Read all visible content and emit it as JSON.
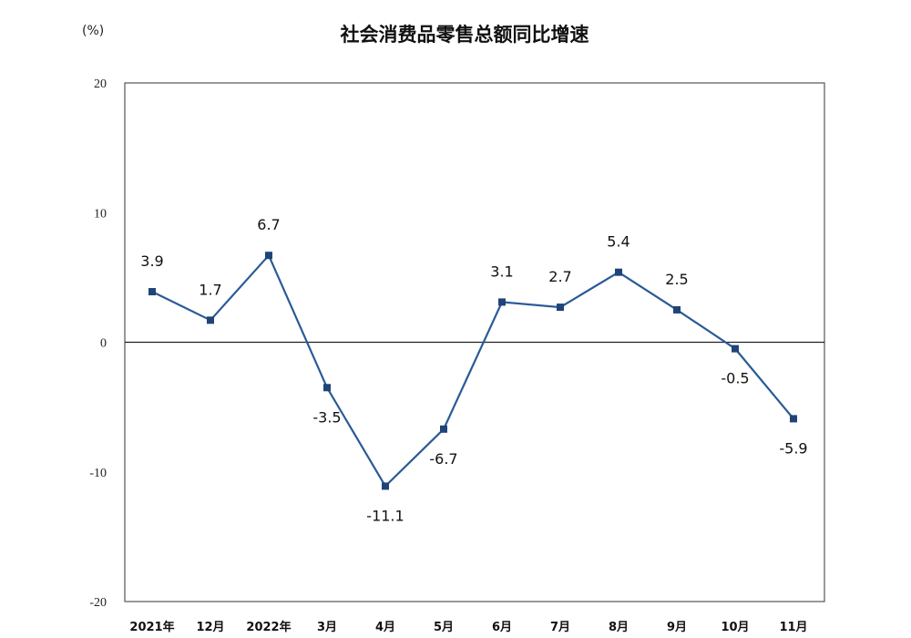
{
  "chart_data": {
    "type": "line",
    "title": "社会消费品零售总额同比增速",
    "ylabel": "(%)",
    "xlabel": "",
    "ylim": [
      -20,
      20
    ],
    "yticks": [
      20,
      10,
      0,
      -10,
      -20
    ],
    "categories": [
      "2021年",
      "12月",
      "2022年",
      "3月",
      "4月",
      "5月",
      "6月",
      "7月",
      "8月",
      "9月",
      "10月",
      "11月"
    ],
    "series": [
      {
        "name": "社会消费品零售总额同比增速",
        "values": [
          3.9,
          1.7,
          6.7,
          -3.5,
          -11.1,
          -6.7,
          3.1,
          2.7,
          5.4,
          2.5,
          -0.5,
          -5.9
        ]
      }
    ],
    "data_labels": [
      "3.9",
      "1.7",
      "6.7",
      "-3.5",
      "-11.1",
      "-6.7",
      "3.1",
      "2.7",
      "5.4",
      "2.5",
      "-0.5",
      "-5.9"
    ],
    "grid": false,
    "legend": "none",
    "colors": {
      "line": "#2a5a96",
      "marker": "#1f4479",
      "axis": "#222222"
    }
  }
}
